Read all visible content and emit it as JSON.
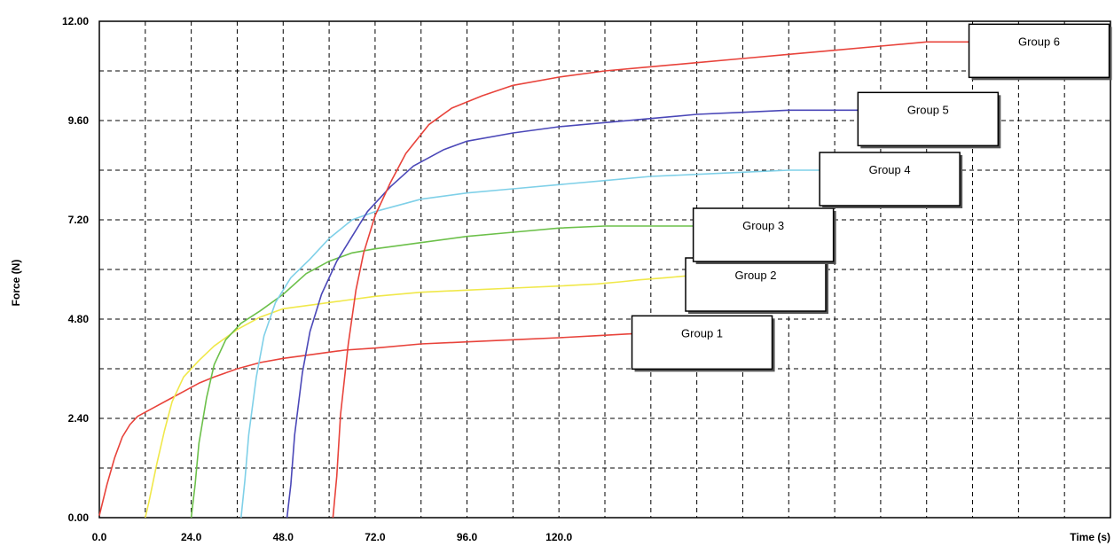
{
  "chart_data": {
    "type": "line",
    "title": "",
    "xlabel": "Time (s)",
    "ylabel": "Force (N)",
    "xlim": [
      0,
      264
    ],
    "ylim": [
      0,
      12
    ],
    "x_ticks": [
      "0.0",
      "24.0",
      "48.0",
      "72.0",
      "96.0",
      "120.0"
    ],
    "y_ticks": [
      "0.00",
      "2.40",
      "4.80",
      "7.20",
      "9.60",
      "12.00"
    ],
    "grid": true,
    "legend_placement": "label boxes at line ends",
    "series": [
      {
        "name": "Group 1",
        "color": "#e8433b",
        "x": [
          0,
          2,
          4,
          6,
          8,
          10,
          14,
          18,
          22,
          26,
          30,
          36,
          42,
          48,
          56,
          64,
          72,
          84,
          96,
          108,
          120,
          130,
          140
        ],
        "y": [
          0.05,
          0.8,
          1.45,
          1.95,
          2.25,
          2.45,
          2.65,
          2.85,
          3.05,
          3.25,
          3.4,
          3.6,
          3.75,
          3.85,
          3.95,
          4.05,
          4.1,
          4.2,
          4.25,
          4.3,
          4.35,
          4.4,
          4.45
        ]
      },
      {
        "name": "Group 2",
        "color": "#f0e84a",
        "x": [
          12,
          13,
          15,
          17,
          19,
          22,
          26,
          30,
          36,
          42,
          48,
          56,
          64,
          72,
          84,
          96,
          108,
          120,
          130,
          136,
          141,
          148,
          154
        ],
        "y": [
          0.0,
          0.4,
          1.3,
          2.1,
          2.8,
          3.4,
          3.8,
          4.15,
          4.55,
          4.85,
          5.05,
          5.15,
          5.25,
          5.35,
          5.45,
          5.5,
          5.55,
          5.6,
          5.65,
          5.7,
          5.75,
          5.8,
          5.85
        ]
      },
      {
        "name": "Group 3",
        "color": "#6cc04a",
        "x": [
          24,
          25,
          26,
          28,
          30,
          33,
          37,
          42,
          48,
          54,
          60,
          66,
          72,
          84,
          96,
          108,
          120,
          132,
          144,
          152,
          156
        ],
        "y": [
          0.0,
          0.8,
          1.8,
          2.9,
          3.7,
          4.3,
          4.7,
          5.0,
          5.4,
          5.9,
          6.2,
          6.4,
          6.5,
          6.65,
          6.8,
          6.9,
          7.0,
          7.05,
          7.05,
          7.05,
          7.05
        ]
      },
      {
        "name": "Group 4",
        "color": "#7fd0e8",
        "x": [
          37,
          38,
          39,
          41,
          43,
          46,
          50,
          55,
          60,
          66,
          72,
          84,
          96,
          108,
          120,
          132,
          144,
          156,
          168,
          180,
          189
        ],
        "y": [
          0.0,
          0.9,
          2.0,
          3.4,
          4.4,
          5.2,
          5.8,
          6.25,
          6.75,
          7.2,
          7.4,
          7.7,
          7.85,
          7.95,
          8.05,
          8.15,
          8.25,
          8.3,
          8.35,
          8.4,
          8.4
        ]
      },
      {
        "name": "Group 5",
        "color": "#4b48b8",
        "x": [
          49,
          50,
          51,
          53,
          55,
          58,
          62,
          66,
          70,
          76,
          82,
          90,
          96,
          108,
          120,
          132,
          144,
          156,
          168,
          180,
          192,
          199
        ],
        "y": [
          0.0,
          0.8,
          2.0,
          3.5,
          4.5,
          5.4,
          6.2,
          6.8,
          7.4,
          8.0,
          8.5,
          8.9,
          9.1,
          9.3,
          9.45,
          9.55,
          9.65,
          9.75,
          9.8,
          9.85,
          9.85,
          9.85
        ]
      },
      {
        "name": "Group 6",
        "color": "#e8433b",
        "x": [
          61,
          62,
          63,
          65,
          67,
          69,
          72,
          76,
          80,
          86,
          92,
          100,
          108,
          120,
          132,
          144,
          156,
          168,
          180,
          192,
          204,
          216,
          228
        ],
        "y": [
          0.0,
          1.0,
          2.5,
          4.2,
          5.5,
          6.4,
          7.3,
          8.1,
          8.8,
          9.5,
          9.9,
          10.2,
          10.45,
          10.65,
          10.8,
          10.9,
          11.0,
          11.1,
          11.2,
          11.3,
          11.4,
          11.5,
          11.5
        ]
      }
    ]
  }
}
